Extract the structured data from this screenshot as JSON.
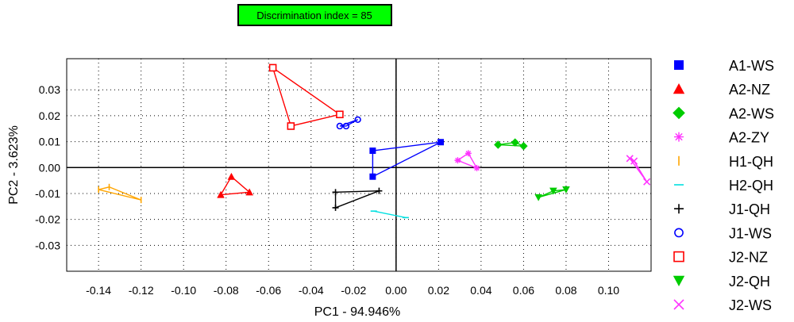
{
  "chart_data": {
    "type": "scatter",
    "title": "",
    "annotation": "Discrimination index = 85",
    "annotation_bg": "#00ff00",
    "xlabel": "PC1 - 94.946%",
    "ylabel": "PC2 - 3.623%",
    "xlim": [
      -0.155,
      0.12
    ],
    "ylim": [
      -0.04,
      0.042
    ],
    "x_ticks": [
      -0.14,
      -0.12,
      -0.1,
      -0.08,
      -0.06,
      -0.04,
      -0.02,
      0.0,
      0.02,
      0.04,
      0.06,
      0.08,
      0.1
    ],
    "x_tick_labels": [
      "-0.14",
      "-0.12",
      "-0.10",
      "-0.08",
      "-0.06",
      "-0.04",
      "-0.02",
      "0.00",
      "0.02",
      "0.04",
      "0.06",
      "0.08",
      "0.10"
    ],
    "y_ticks": [
      0.03,
      0.02,
      0.01,
      0.0,
      -0.01,
      -0.02,
      -0.03
    ],
    "y_tick_labels": [
      "0.03",
      "0.02",
      "0.01",
      "0.00",
      "-0.01",
      "-0.02",
      "-0.03"
    ],
    "grid": true,
    "legend_position": "right",
    "series": [
      {
        "name": "A1-WS",
        "marker": "square",
        "color": "#0000ff",
        "points": [
          [
            -0.011,
            0.0065
          ],
          [
            0.021,
            0.0098
          ],
          [
            -0.011,
            -0.0035
          ]
        ]
      },
      {
        "name": "A2-NZ",
        "marker": "triangle",
        "color": "#ff0000",
        "points": [
          [
            -0.0775,
            -0.0035
          ],
          [
            -0.0825,
            -0.0105
          ],
          [
            -0.069,
            -0.0095
          ]
        ]
      },
      {
        "name": "A2-WS",
        "marker": "diamond",
        "color": "#00cc00",
        "points": [
          [
            0.048,
            0.0088
          ],
          [
            0.056,
            0.0097
          ],
          [
            0.06,
            0.0083
          ]
        ]
      },
      {
        "name": "A2-ZY",
        "marker": "asterisk",
        "color": "#ff33ff",
        "points": [
          [
            0.029,
            0.0028
          ],
          [
            0.034,
            0.0055
          ],
          [
            0.038,
            -0.0002
          ]
        ]
      },
      {
        "name": "H1-QH",
        "marker": "vline",
        "color": "#ffa500",
        "points": [
          [
            -0.14,
            -0.0085
          ],
          [
            -0.135,
            -0.0075
          ],
          [
            -0.12,
            -0.0125
          ]
        ]
      },
      {
        "name": "H2-QH",
        "marker": "hline",
        "color": "#00e0e0",
        "points": [
          [
            -0.0105,
            -0.0168
          ],
          [
            0.0045,
            -0.0193
          ]
        ]
      },
      {
        "name": "J1-QH",
        "marker": "plus",
        "color": "#000000",
        "points": [
          [
            -0.0285,
            -0.0095
          ],
          [
            -0.0285,
            -0.0155
          ],
          [
            -0.008,
            -0.009
          ]
        ]
      },
      {
        "name": "J1-WS",
        "marker": "circle",
        "color": "#0000ff",
        "points": [
          [
            -0.0265,
            0.016
          ],
          [
            -0.0235,
            0.016
          ],
          [
            -0.018,
            0.0185
          ]
        ]
      },
      {
        "name": "J2-NZ",
        "marker": "open-square",
        "color": "#ff0000",
        "points": [
          [
            -0.058,
            0.0385
          ],
          [
            -0.0265,
            0.0205
          ],
          [
            -0.0495,
            0.016
          ]
        ]
      },
      {
        "name": "J2-QH",
        "marker": "down-triangle",
        "color": "#00cc00",
        "points": [
          [
            0.067,
            -0.0115
          ],
          [
            0.074,
            -0.009
          ],
          [
            0.08,
            -0.0085
          ]
        ]
      },
      {
        "name": "J2-WS",
        "marker": "cross",
        "color": "#ff33ff",
        "points": [
          [
            0.11,
            0.0035
          ],
          [
            0.112,
            0.0025
          ],
          [
            0.118,
            -0.0055
          ]
        ]
      }
    ]
  }
}
